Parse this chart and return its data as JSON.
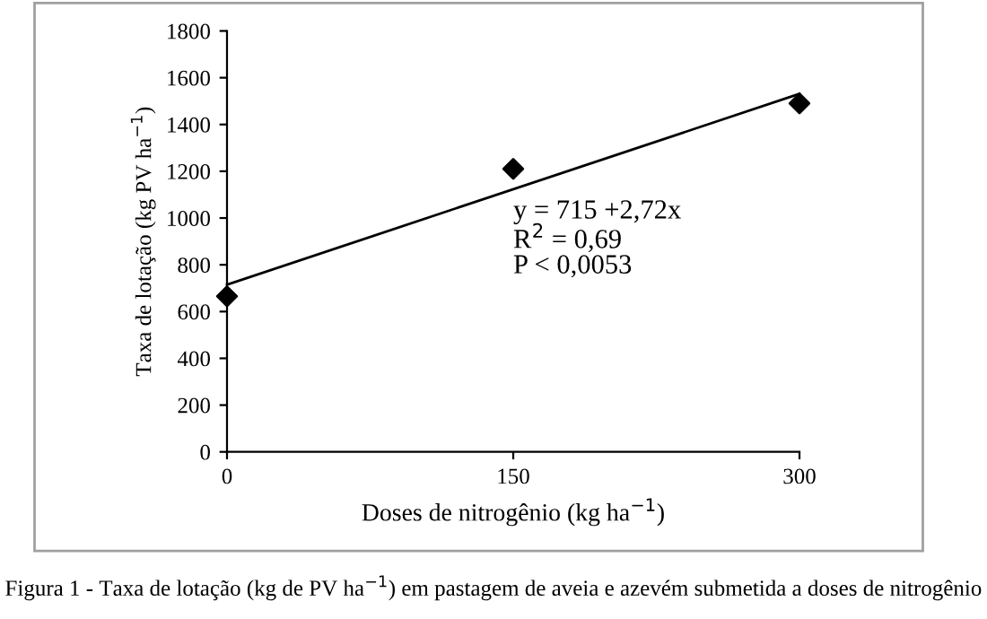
{
  "chart_data": {
    "type": "scatter",
    "xlabel": "Doses de nitrogênio (kg ha$^{−1}$)",
    "ylabel": "Taxa de lotação (kg PV ha$^{−1}$)",
    "series": [
      {
        "color": "#000000",
        "marker": "diamond",
        "x": [
          0,
          150,
          300
        ],
        "values": [
          665,
          1210,
          1490
        ]
      },
      {
        "type": "line",
        "color": "#000000",
        "line_style": "solid",
        "marker": "none",
        "x": [
          0,
          300
        ],
        "values": [
          715,
          1531
        ]
      }
    ],
    "xlim": [
      0,
      300
    ],
    "xticks": [
      0,
      150,
      300
    ],
    "ylim": [
      0,
      1800
    ],
    "yticks": [
      0,
      200,
      400,
      600,
      800,
      1000,
      1200,
      1400,
      1600,
      1800
    ],
    "grid": false,
    "legend": false,
    "annotations": [
      "y = 715 +2,72x",
      "R$^{2}$ = 0,69",
      "P < 0,0053",
      "Figura 1 - Taxa de lotação (kg de PV ha$^{−1}$) em pastagem de aveia e azevém submetida a doses de nitrogênio"
    ]
  }
}
